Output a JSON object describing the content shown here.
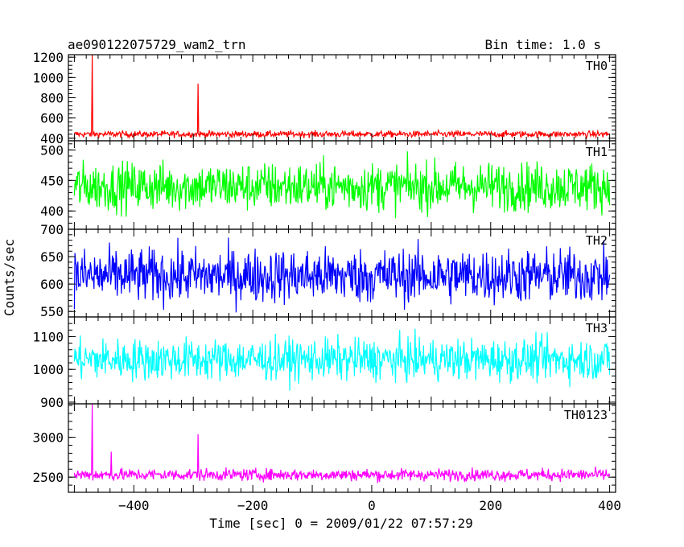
{
  "header": {
    "title": "ae090122075729_wam2_trn",
    "bin_time": "Bin time: 1.0 s"
  },
  "chart_data": {
    "type": "line",
    "title": "ae090122075729_wam2_trn",
    "subtitle": "Bin time: 1.0 s",
    "xlabel": "Time [sec] 0 = 2009/01/22 07:57:29",
    "ylabel": "Counts/sec",
    "xlim": [
      -510,
      410
    ],
    "xticks": [
      -400,
      -200,
      0,
      200,
      400
    ],
    "x_range": [
      -500,
      400
    ],
    "grid": false,
    "panels": [
      {
        "name": "TH0",
        "color": "#ff0000",
        "ylim": [
          375,
          1225
        ],
        "yticks": [
          400,
          600,
          800,
          1000,
          1200
        ],
        "mean": 440,
        "noise": 16,
        "spikes": [
          {
            "x": -470,
            "y": 1225
          },
          {
            "x": -292,
            "y": 940
          }
        ]
      },
      {
        "name": "TH1",
        "color": "#00ff00",
        "ylim": [
          370,
          515
        ],
        "yticks": [
          400,
          450,
          500
        ],
        "mean": 440,
        "noise": 20,
        "spikes": []
      },
      {
        "name": "TH2",
        "color": "#0000ff",
        "ylim": [
          540,
          700
        ],
        "yticks": [
          550,
          600,
          650,
          700
        ],
        "mean": 615,
        "noise": 25,
        "spikes": []
      },
      {
        "name": "TH3",
        "color": "#00ffff",
        "ylim": [
          895,
          1160
        ],
        "yticks": [
          900,
          1000,
          1100
        ],
        "mean": 1030,
        "noise": 32,
        "spikes": []
      },
      {
        "name": "TH0123",
        "color": "#ff00ff",
        "ylim": [
          2310,
          3420
        ],
        "yticks": [
          2500,
          3000
        ],
        "mean": 2530,
        "noise": 38,
        "spikes": [
          {
            "x": -470,
            "y": 3420
          },
          {
            "x": -292,
            "y": 3040
          },
          {
            "x": -438,
            "y": 2820
          }
        ]
      }
    ]
  }
}
